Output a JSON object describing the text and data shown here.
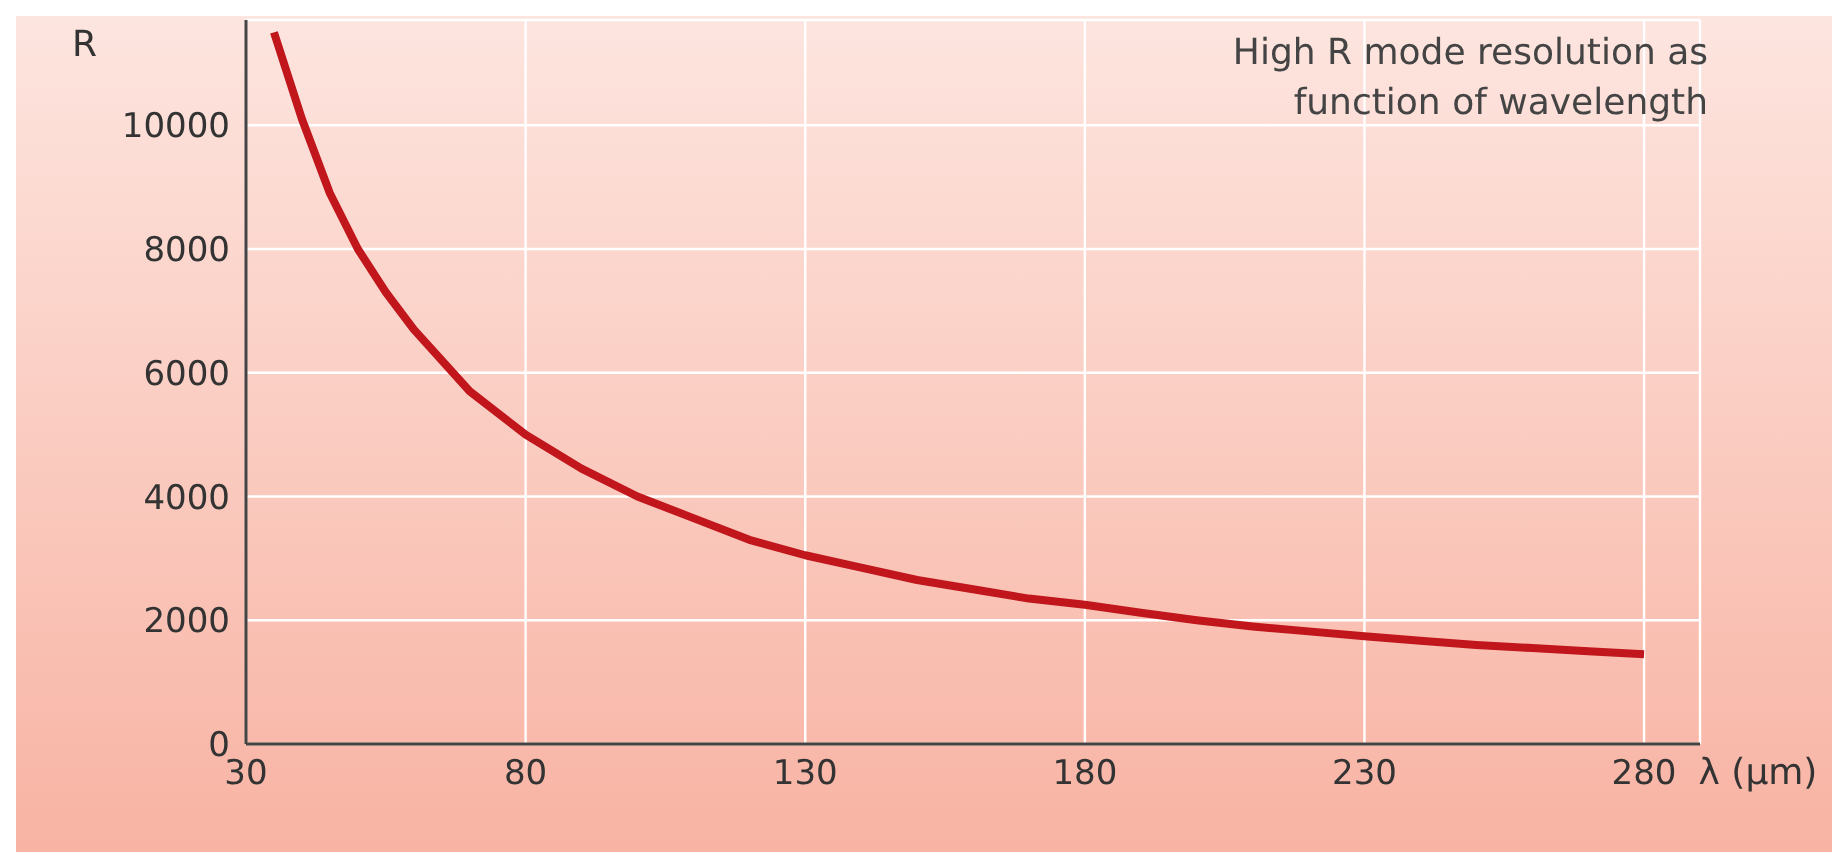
{
  "chart_data": {
    "type": "line",
    "title": "High R mode resolution as function of wavelength",
    "xlabel": "λ (μm)",
    "ylabel": "R",
    "x": [
      35,
      40,
      45,
      50,
      55,
      60,
      70,
      80,
      90,
      100,
      110,
      120,
      130,
      140,
      150,
      160,
      170,
      180,
      190,
      200,
      210,
      220,
      230,
      240,
      250,
      260,
      270,
      280
    ],
    "series": [
      {
        "color": "#c0161c",
        "values": [
          11500,
          10100,
          8900,
          8000,
          7300,
          6700,
          5700,
          5000,
          4450,
          4000,
          3650,
          3300,
          3050,
          2850,
          2650,
          2500,
          2350,
          2250,
          2120,
          2000,
          1900,
          1820,
          1740,
          1670,
          1600,
          1550,
          1500,
          1450
        ]
      }
    ],
    "xlim": [
      30,
      290
    ],
    "xticks": [
      30,
      80,
      130,
      180,
      230,
      280
    ],
    "ylim": [
      0,
      11700
    ],
    "yticks": [
      0,
      2000,
      4000,
      6000,
      8000,
      10000
    ],
    "grid": true,
    "marker": "none",
    "line_style": "solid"
  }
}
